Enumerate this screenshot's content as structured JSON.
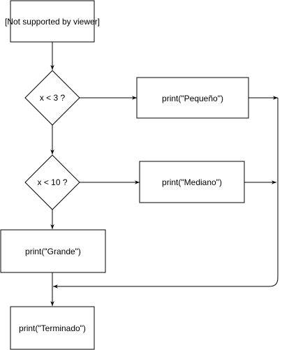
{
  "nodes": {
    "start": {
      "label": "[Not supported by viewer]"
    },
    "cond1": {
      "label": "x < 3 ?"
    },
    "print_small": {
      "label": "print(\"Pequeño\")"
    },
    "cond2": {
      "label": "x < 10 ?"
    },
    "print_medium": {
      "label": "print(\"Mediano\")"
    },
    "print_large": {
      "label": "print(\"Grande\")"
    },
    "print_done": {
      "label": "print(\"Terminado\")"
    }
  },
  "colors": {
    "stroke": "#000000",
    "fill": "#ffffff",
    "text": "#000000"
  }
}
